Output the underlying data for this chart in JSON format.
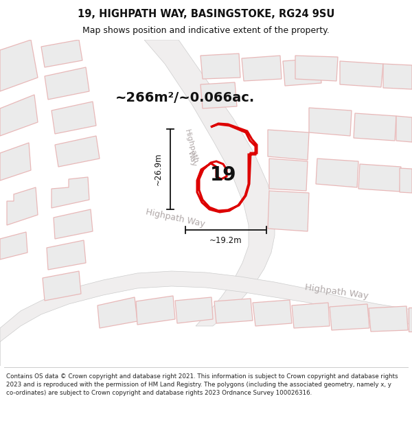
{
  "title_line1": "19, HIGHPATH WAY, BASINGSTOKE, RG24 9SU",
  "title_line2": "Map shows position and indicative extent of the property.",
  "area_text": "~266m²/~0.066ac.",
  "number_label": "19",
  "dim_vertical": "~26.9m",
  "dim_horizontal": "~19.2m",
  "copyright_text": "Contains OS data © Crown copyright and database right 2021. This information is subject to Crown copyright and database rights 2023 and is reproduced with the permission of HM Land Registry. The polygons (including the associated geometry, namely x, y co-ordinates) are subject to Crown copyright and database rights 2023 Ordnance Survey 100026316.",
  "map_bg": "#f7f4f4",
  "building_fill": "#ebebeb",
  "building_edge": "#e8b8b8",
  "road_fill": "#ffffff",
  "road_edge": "#cccccc",
  "highlight_color": "#dd0000",
  "highlight_fill": "#ffffff",
  "dim_color": "#111111",
  "street_label_color": "#b0a8a8",
  "title_color": "#111111",
  "figsize": [
    6.0,
    6.25
  ],
  "dpi": 100
}
